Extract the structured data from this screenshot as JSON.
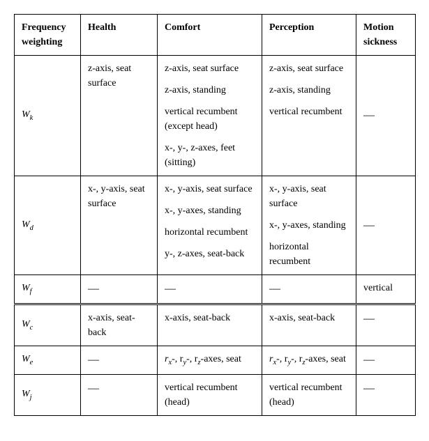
{
  "table": {
    "headers": {
      "c0": "Frequency weighting",
      "c1": "Health",
      "c2": "Comfort",
      "c3": "Perception",
      "c4": "Motion sickness"
    },
    "rows": {
      "wk": {
        "label_main": "W",
        "label_sub": "k",
        "health_p1": "z-axis, seat surface",
        "comfort_p1": "z-axis, seat surface",
        "comfort_p2": "z-axis, standing",
        "comfort_p3": "vertical recumbent (except head)",
        "comfort_p4": "x-, y-, z-axes, feet (sitting)",
        "perception_p1": "z-axis, seat surface",
        "perception_p2": "z-axis, standing",
        "perception_p3": "vertical recumbent",
        "motion": "—"
      },
      "wd": {
        "label_main": "W",
        "label_sub": "d",
        "health_p1": "x-, y-axis, seat surface",
        "comfort_p1": "x-, y-axis, seat surface",
        "comfort_p2": "x-, y-axes, standing",
        "comfort_p3": "horizontal recumbent",
        "comfort_p4": "y-, z-axes, seat-back",
        "perception_p1": "x-, y-axis, seat surface",
        "perception_p2": "x-, y-axes, standing",
        "perception_p3": "horizontal recumbent",
        "motion": "—"
      },
      "wf": {
        "label_main": "W",
        "label_sub": "f",
        "health": "—",
        "comfort": "—",
        "perception": "—",
        "motion": "vertical"
      },
      "wc": {
        "label_main": "W",
        "label_sub": "c",
        "health": "x-axis, seat-back",
        "comfort": "x-axis, seat-back",
        "perception": "x-axis, seat-back",
        "motion": "—"
      },
      "we": {
        "label_main": "W",
        "label_sub": "e",
        "health": "—",
        "comfort_prefix": "r",
        "comfort_x": "x",
        "comfort_mid1": "-, r",
        "comfort_y": "y",
        "comfort_mid2": "-, r",
        "comfort_z": "z",
        "comfort_suffix": "-axes, seat",
        "perception_prefix": "r",
        "perception_x": "x",
        "perception_mid1": "-, r",
        "perception_y": "y",
        "perception_mid2": "-, r",
        "perception_z": "z",
        "perception_suffix": "-axes, seat",
        "motion": "—"
      },
      "wj": {
        "label_main": "W",
        "label_sub": "j",
        "health": "—",
        "comfort": "vertical recumbent (head)",
        "perception": "vertical recumbent (head)",
        "motion": "—"
      }
    }
  }
}
